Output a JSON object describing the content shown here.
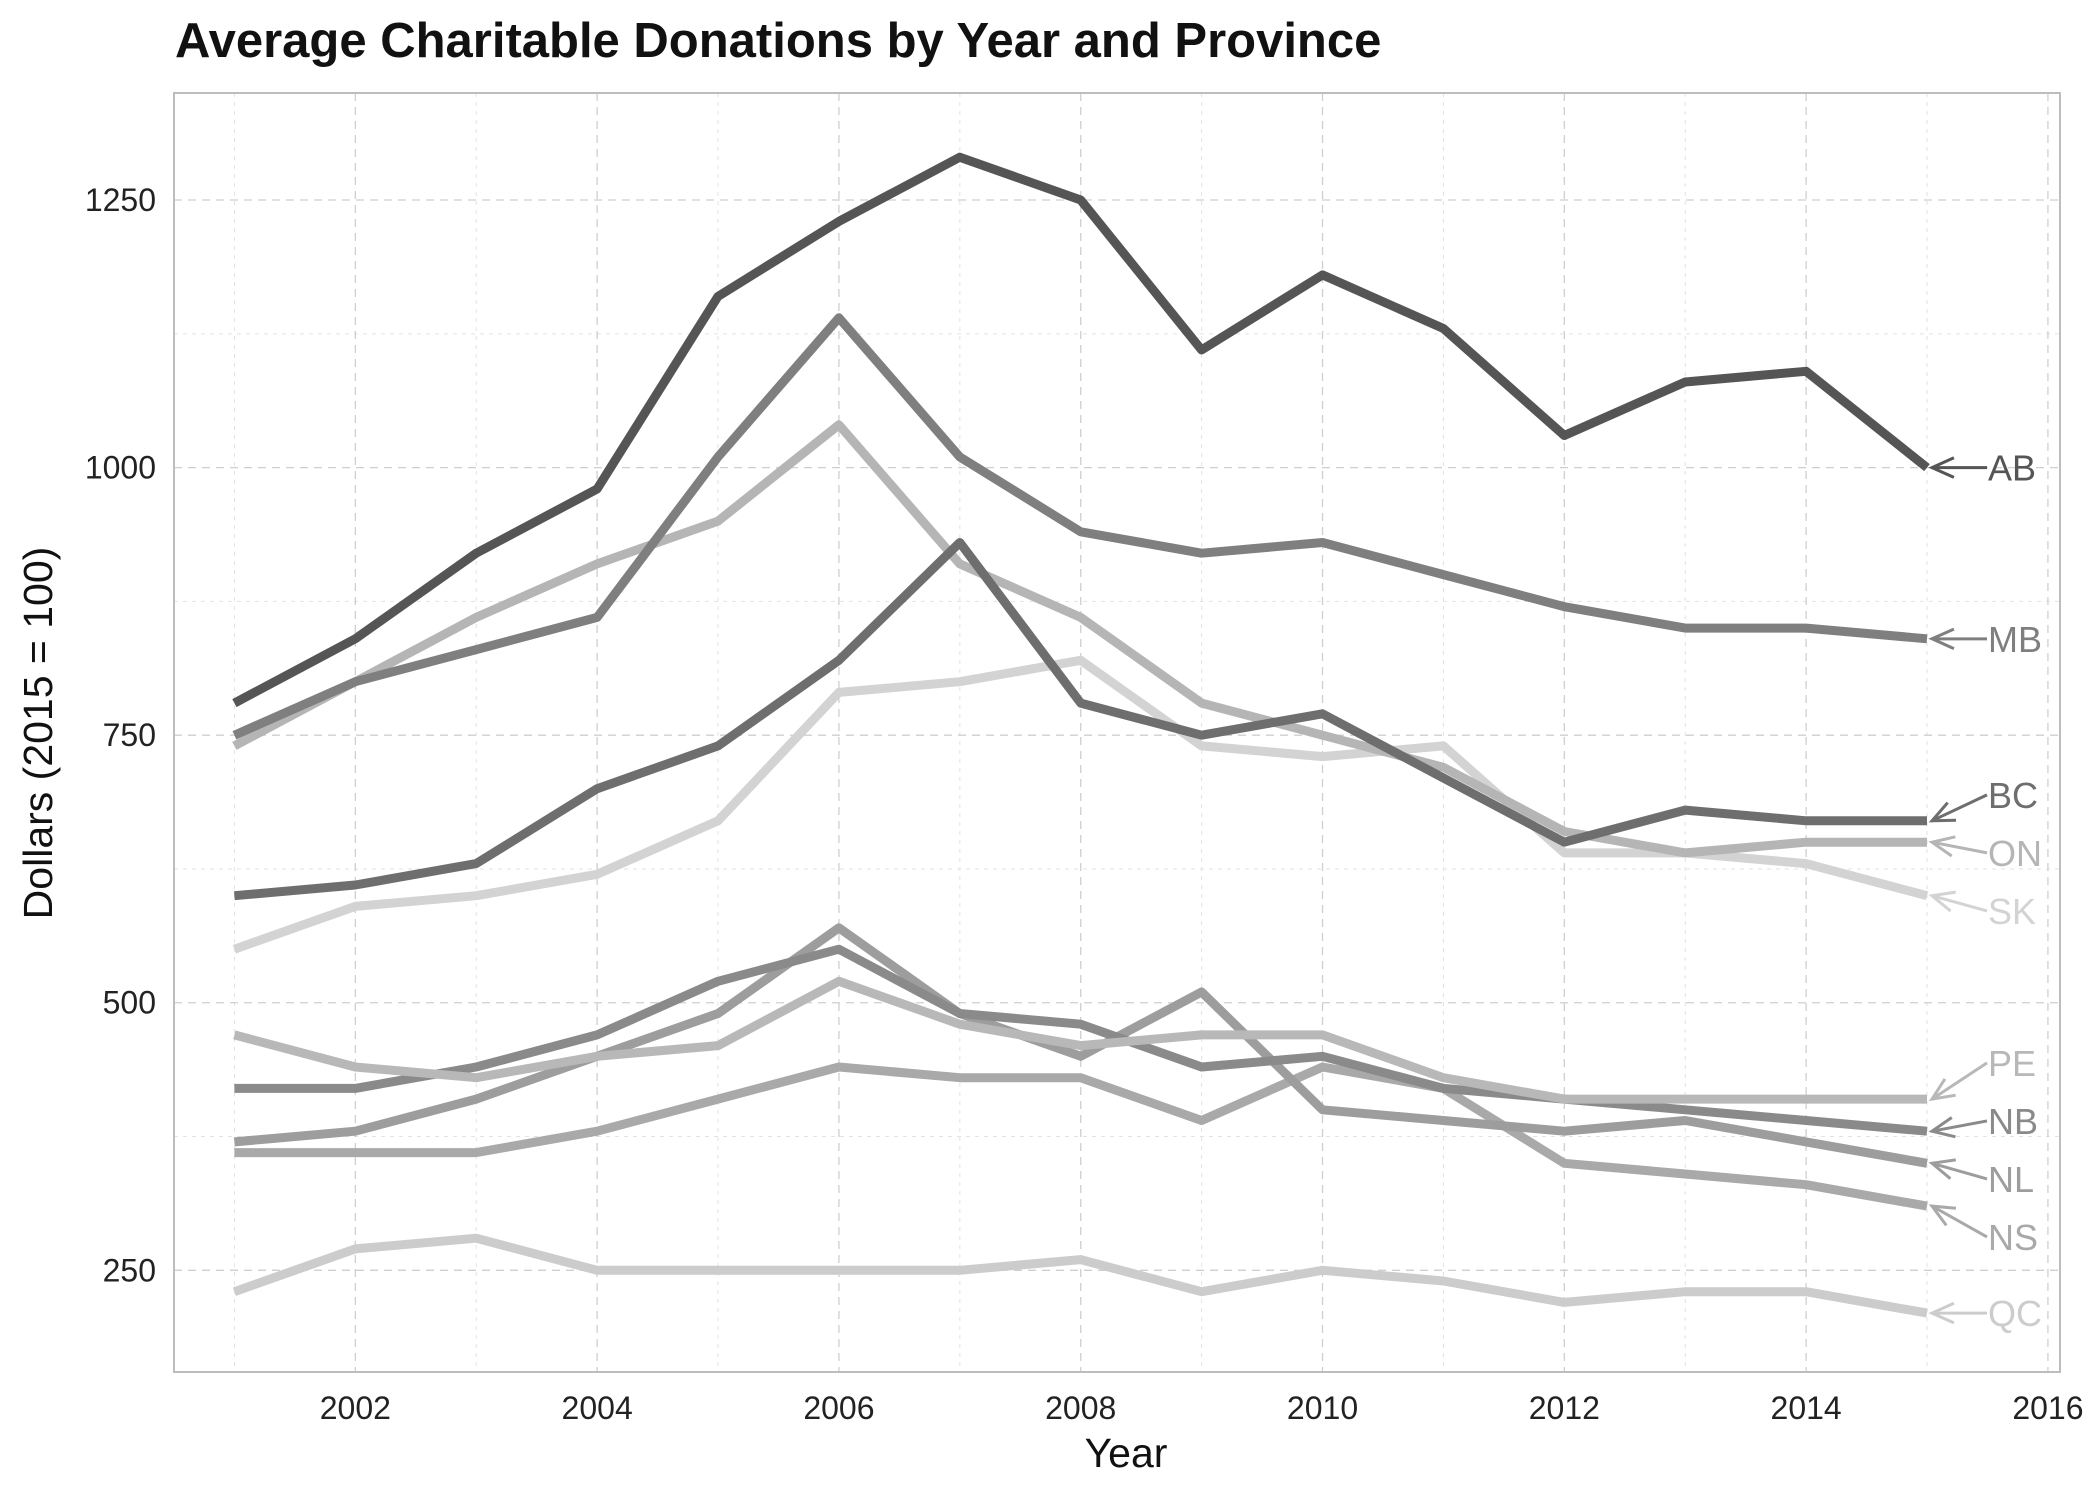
{
  "chart_data": {
    "type": "line",
    "title": "Average Charitable Donations by Year and Province",
    "xlabel": "Year",
    "ylabel": "Dollars (2015 = 100)",
    "xlim": [
      2000.5,
      2016.1
    ],
    "ylim": [
      155,
      1350
    ],
    "x_ticks": [
      2002,
      2004,
      2006,
      2008,
      2010,
      2012,
      2014,
      2016
    ],
    "y_ticks": [
      250,
      500,
      750,
      1000,
      1250
    ],
    "grid": true,
    "legend": "direct labels at line ends (right)",
    "x": [
      2001,
      2002,
      2003,
      2004,
      2005,
      2006,
      2007,
      2008,
      2009,
      2010,
      2011,
      2012,
      2013,
      2014,
      2015
    ],
    "series": [
      {
        "name": "AB",
        "color": "#555555",
        "values": [
          780,
          840,
          920,
          980,
          1160,
          1230,
          1290,
          1250,
          1110,
          1180,
          1130,
          1030,
          1080,
          1090,
          1000
        ]
      },
      {
        "name": "MB",
        "color": "#7f7f7f",
        "values": [
          750,
          800,
          830,
          860,
          1010,
          1140,
          1010,
          940,
          920,
          930,
          900,
          870,
          850,
          850,
          840
        ]
      },
      {
        "name": "BC",
        "color": "#6e6e6e",
        "values": [
          600,
          610,
          630,
          700,
          740,
          820,
          930,
          780,
          750,
          770,
          710,
          650,
          680,
          670,
          670
        ]
      },
      {
        "name": "ON",
        "color": "#b5b5b5",
        "values": [
          740,
          800,
          860,
          910,
          950,
          1040,
          910,
          860,
          780,
          750,
          720,
          660,
          640,
          650,
          650
        ]
      },
      {
        "name": "SK",
        "color": "#d3d3d3",
        "values": [
          550,
          590,
          600,
          620,
          670,
          790,
          800,
          820,
          740,
          730,
          740,
          640,
          640,
          630,
          600
        ]
      },
      {
        "name": "PE",
        "color": "#b8b8b8",
        "values": [
          470,
          440,
          430,
          450,
          460,
          520,
          480,
          460,
          470,
          470,
          430,
          410,
          410,
          410,
          410
        ]
      },
      {
        "name": "NB",
        "color": "#8a8a8a",
        "values": [
          420,
          420,
          440,
          470,
          520,
          550,
          490,
          480,
          440,
          450,
          420,
          410,
          400,
          390,
          380
        ]
      },
      {
        "name": "NL",
        "color": "#9d9d9d",
        "values": [
          370,
          380,
          410,
          450,
          490,
          570,
          490,
          450,
          510,
          400,
          390,
          380,
          390,
          370,
          350
        ]
      },
      {
        "name": "NS",
        "color": "#a9a9a9",
        "values": [
          360,
          360,
          360,
          380,
          410,
          440,
          430,
          430,
          390,
          440,
          420,
          350,
          340,
          330,
          310
        ]
      },
      {
        "name": "QC",
        "color": "#cccccc",
        "values": [
          230,
          270,
          280,
          250,
          250,
          250,
          250,
          260,
          230,
          250,
          240,
          220,
          230,
          230,
          210
        ]
      }
    ]
  }
}
